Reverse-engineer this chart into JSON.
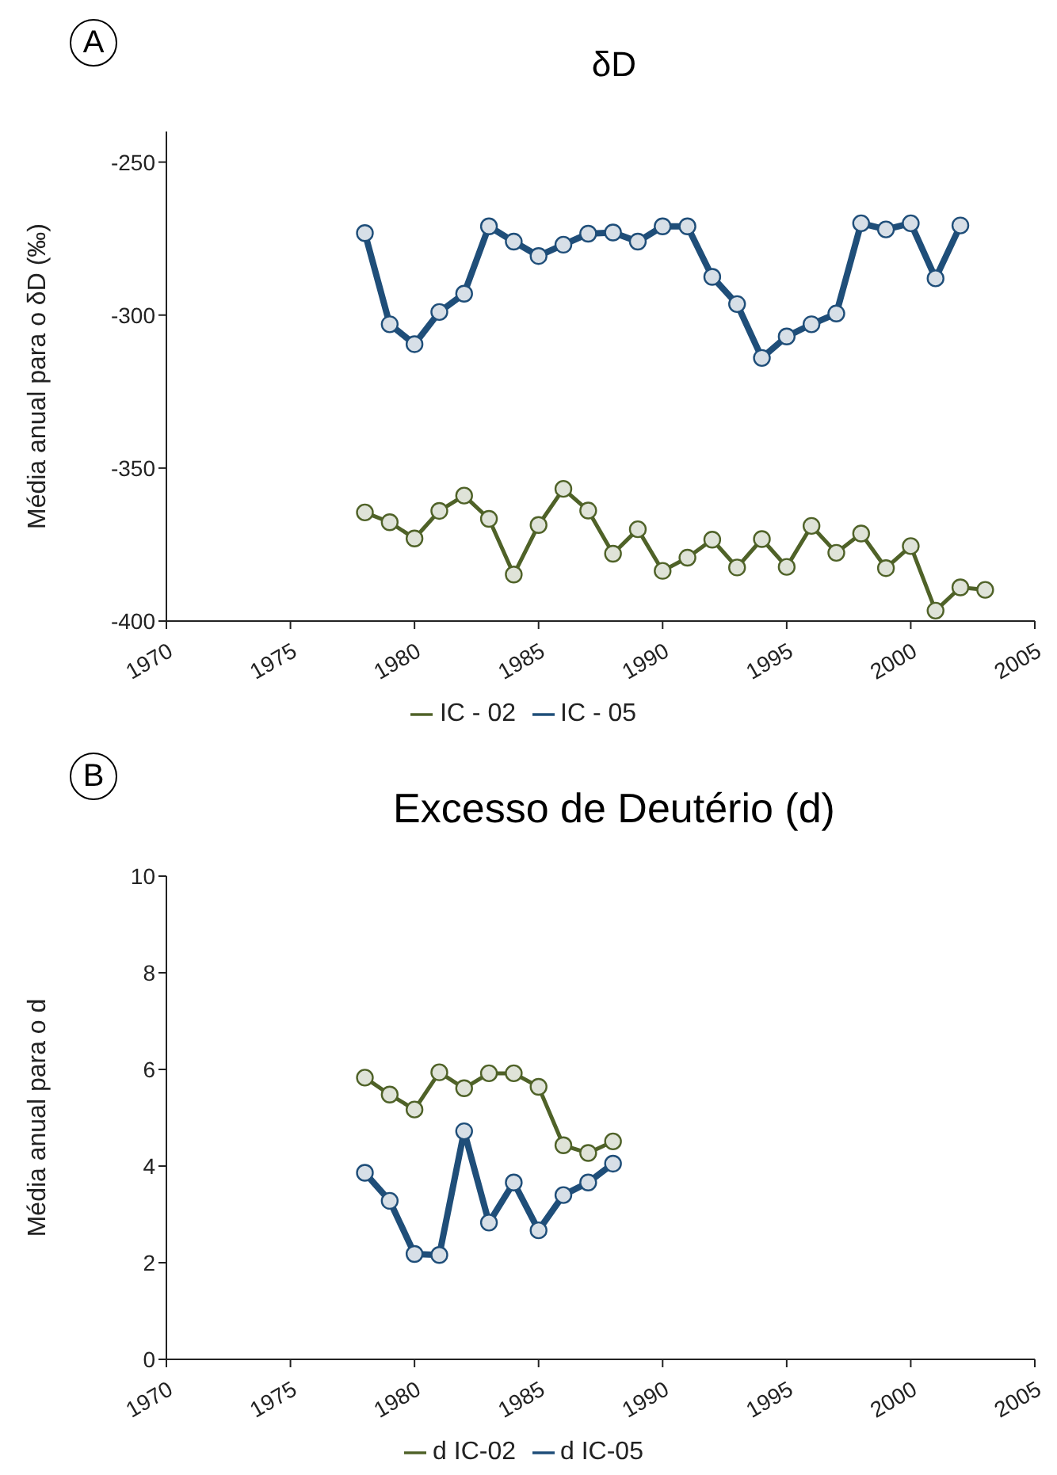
{
  "chart_data": [
    {
      "type": "line",
      "title": "δD",
      "ylabel": "Média anual para o δD (‰)",
      "annotations": [
        "A"
      ],
      "xlim": [
        1970,
        2005
      ],
      "xticks": [
        1970,
        1975,
        1980,
        1985,
        1990,
        1995,
        2000,
        2005
      ],
      "ylim": [
        -400,
        -240
      ],
      "yticks": [
        -250,
        -300,
        -350,
        -400
      ],
      "grid": false,
      "legend": "bottom",
      "marker": "circle",
      "line_style": "solid",
      "series": [
        {
          "name": "IC - 02",
          "color": "#4f6228",
          "x": [
            1978,
            1979,
            1980,
            1981,
            1982,
            1983,
            1984,
            1985,
            1986,
            1987,
            1988,
            1989,
            1990,
            1991,
            1992,
            1993,
            1994,
            1995,
            1996,
            1997,
            1998,
            1999,
            2000,
            2001,
            2002,
            2003
          ],
          "values": [
            -364.5,
            -367.7,
            -373,
            -364,
            -359,
            -366.6,
            -384.8,
            -368.6,
            -356.8,
            -363.9,
            -378,
            -370,
            -383.6,
            -379.3,
            -373.4,
            -382.5,
            -373.2,
            -382.3,
            -368.9,
            -377.7,
            -371.4,
            -382.7,
            -375.5,
            -396.6,
            -389,
            -389.8
          ]
        },
        {
          "name": "IC - 05",
          "color": "#1f4e79",
          "x": [
            1978,
            1979,
            1980,
            1981,
            1982,
            1983,
            1984,
            1985,
            1986,
            1987,
            1988,
            1989,
            1990,
            1991,
            1992,
            1993,
            1994,
            1995,
            1996,
            1997,
            1998,
            1999,
            2000,
            2001,
            2002
          ],
          "values": [
            -273.2,
            -303,
            -309.5,
            -299,
            -293,
            -271,
            -276,
            -280.7,
            -277,
            -273.4,
            -273,
            -276,
            -271,
            -271,
            -287.5,
            -296.4,
            -314,
            -307,
            -303,
            -299.5,
            -270,
            -272,
            -270,
            -288,
            -270.7
          ]
        }
      ]
    },
    {
      "type": "line",
      "title": "Excesso de Deutério (d)",
      "ylabel": "Média anual para o d",
      "annotations": [
        "B"
      ],
      "xlim": [
        1970,
        2005
      ],
      "xticks": [
        1970,
        1975,
        1980,
        1985,
        1990,
        1995,
        2000,
        2005
      ],
      "ylim": [
        0,
        10
      ],
      "yticks": [
        0,
        2,
        4,
        6,
        8,
        10
      ],
      "grid": false,
      "legend": "bottom",
      "marker": "circle",
      "line_style": "solid",
      "series": [
        {
          "name": "d IC-02",
          "color": "#4f6228",
          "x": [
            1978,
            1979,
            1980,
            1981,
            1982,
            1983,
            1984,
            1985,
            1986,
            1987,
            1988
          ],
          "values": [
            5.83,
            5.48,
            5.17,
            5.94,
            5.61,
            5.92,
            5.92,
            5.64,
            4.43,
            4.27,
            4.51
          ]
        },
        {
          "name": "d IC-05",
          "color": "#1f4e79",
          "x": [
            1978,
            1979,
            1980,
            1981,
            1982,
            1983,
            1984,
            1985,
            1986,
            1987,
            1988
          ],
          "values": [
            3.86,
            3.28,
            2.18,
            2.16,
            4.72,
            2.83,
            3.66,
            2.67,
            3.4,
            3.66,
            4.05
          ]
        }
      ]
    }
  ]
}
